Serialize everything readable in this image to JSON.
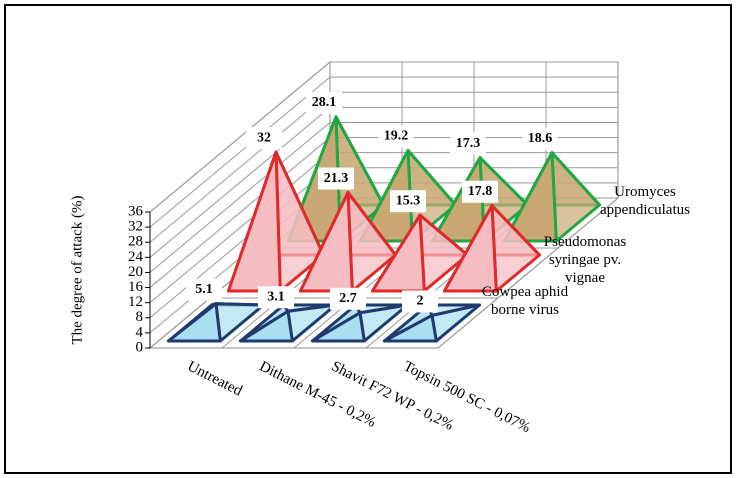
{
  "chart_data": {
    "type": "pyramid",
    "categories": [
      "Untreated",
      "Dithane M-45 - 0,2%",
      "Shavit F72 WP - 0,2%",
      "Topsin 500 SC - 0,07%"
    ],
    "series": [
      {
        "name": "Cowpea aphid borne virus",
        "color": "#a9dff0",
        "edge": "#1f3a6e",
        "values": [
          5.1,
          3.1,
          2.7,
          2
        ]
      },
      {
        "name": "Pseudomonas syringae pv. vignae",
        "color": "#f5bcc2",
        "edge": "#e02a2a",
        "values": [
          32,
          21.3,
          15.3,
          17.8
        ]
      },
      {
        "name": "Uromyces appendiculatus",
        "color": "#c9a873",
        "edge": "#1fa843",
        "values": [
          28.1,
          19.2,
          17.3,
          18.6
        ]
      }
    ],
    "y_label": "The degree of attack (%)",
    "ylim": [
      0,
      36
    ],
    "yticks": [
      0,
      4,
      8,
      12,
      16,
      20,
      24,
      28,
      32,
      36
    ],
    "grid": true
  }
}
